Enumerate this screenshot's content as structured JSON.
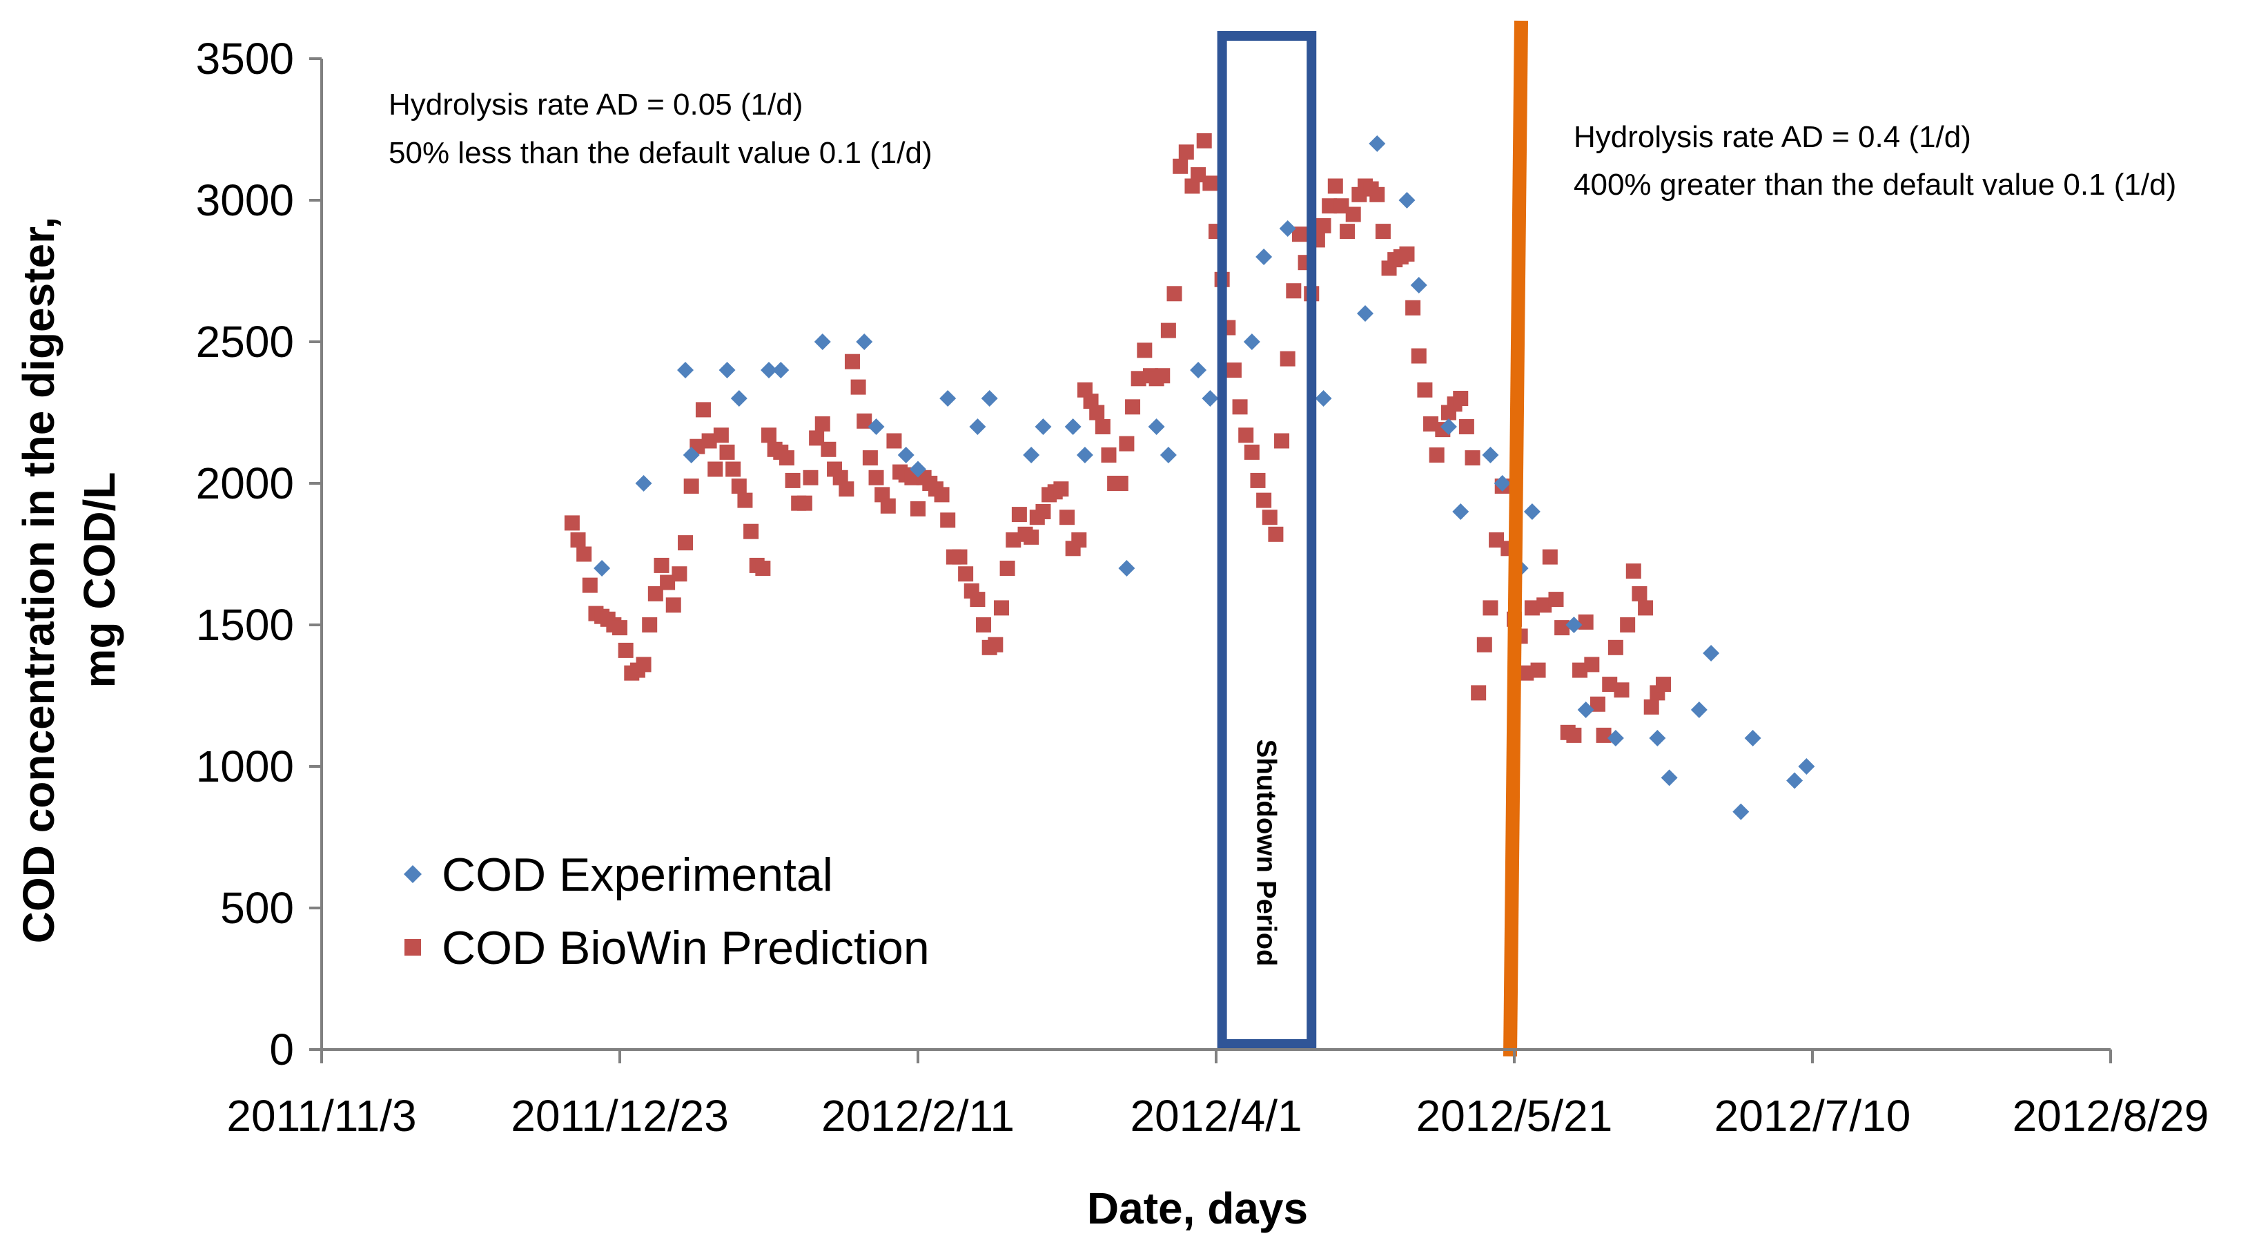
{
  "colors": {
    "experimental": "#4F81BD",
    "prediction": "#C0504D",
    "shutdown_box": "#2F5597",
    "orange_line": "#E46C0A",
    "axis": "#808080"
  },
  "chart_data": {
    "type": "scatter",
    "xlabel": "Date, days",
    "ylabel_line1": "COD concentration in the digester,",
    "ylabel_line2": "mg COD/L",
    "xlim": [
      "2011-11-03",
      "2012-08-29"
    ],
    "ylim": [
      0,
      3500
    ],
    "x_ticks": [
      "2011/11/3",
      "2011/12/23",
      "2012/2/11",
      "2012/4/1",
      "2012/5/21",
      "2012/7/10",
      "2012/8/29"
    ],
    "y_ticks": [
      "0",
      "500",
      "1000",
      "1500",
      "2000",
      "2500",
      "3000",
      "3500"
    ],
    "grid": false,
    "legend_position": "bottom-left",
    "annotations": {
      "left_line1": "Hydrolysis rate AD = 0.05 (1/d)",
      "left_line2": "50% less than the default value  0.1 (1/d)",
      "right_line1": "Hydrolysis rate AD = 0.4 (1/d)",
      "right_line2": "400% greater than the default value 0.1 (1/d)",
      "shutdown": "Shutdown  Period"
    },
    "shutdown_period": [
      "2012-04-02",
      "2012-04-17"
    ],
    "vertical_line_date": "2012-05-21",
    "series": [
      {
        "name": "COD Experimental",
        "marker": "diamond",
        "points": [
          [
            "2011-12-20",
            1700
          ],
          [
            "2011-12-27",
            2000
          ],
          [
            "2012-01-03",
            2400
          ],
          [
            "2012-01-04",
            2100
          ],
          [
            "2012-01-10",
            2400
          ],
          [
            "2012-01-12",
            2300
          ],
          [
            "2012-01-17",
            2400
          ],
          [
            "2012-01-19",
            2400
          ],
          [
            "2012-01-26",
            2500
          ],
          [
            "2012-02-02",
            2500
          ],
          [
            "2012-02-04",
            2200
          ],
          [
            "2012-02-09",
            2100
          ],
          [
            "2012-02-11",
            2050
          ],
          [
            "2012-02-16",
            2300
          ],
          [
            "2012-02-21",
            2200
          ],
          [
            "2012-02-23",
            2300
          ],
          [
            "2012-03-01",
            2100
          ],
          [
            "2012-03-03",
            2200
          ],
          [
            "2012-03-08",
            2200
          ],
          [
            "2012-03-10",
            2100
          ],
          [
            "2012-03-17",
            1700
          ],
          [
            "2012-03-22",
            2200
          ],
          [
            "2012-03-24",
            2100
          ],
          [
            "2012-03-29",
            2400
          ],
          [
            "2012-03-31",
            2300
          ],
          [
            "2012-04-07",
            2500
          ],
          [
            "2012-04-09",
            2800
          ],
          [
            "2012-04-13",
            2900
          ],
          [
            "2012-04-19",
            2300
          ],
          [
            "2012-04-26",
            2600
          ],
          [
            "2012-04-28",
            3200
          ],
          [
            "2012-05-03",
            3000
          ],
          [
            "2012-05-05",
            2700
          ],
          [
            "2012-05-10",
            2200
          ],
          [
            "2012-05-12",
            1900
          ],
          [
            "2012-05-17",
            2100
          ],
          [
            "2012-05-19",
            2000
          ],
          [
            "2012-05-22",
            1700
          ],
          [
            "2012-05-24",
            1900
          ],
          [
            "2012-05-31",
            1500
          ],
          [
            "2012-06-02",
            1200
          ],
          [
            "2012-06-07",
            1100
          ],
          [
            "2012-06-14",
            1100
          ],
          [
            "2012-06-16",
            960
          ],
          [
            "2012-06-21",
            1200
          ],
          [
            "2012-06-23",
            1400
          ],
          [
            "2012-06-28",
            840
          ],
          [
            "2012-06-30",
            1100
          ],
          [
            "2012-07-07",
            950
          ],
          [
            "2012-07-09",
            1000
          ]
        ]
      },
      {
        "name": "COD BioWin Prediction",
        "marker": "square",
        "points": [
          [
            "2011-12-15",
            1860
          ],
          [
            "2011-12-16",
            1800
          ],
          [
            "2011-12-17",
            1750
          ],
          [
            "2011-12-18",
            1640
          ],
          [
            "2011-12-19",
            1540
          ],
          [
            "2011-12-20",
            1530
          ],
          [
            "2011-12-21",
            1520
          ],
          [
            "2011-12-22",
            1500
          ],
          [
            "2011-12-23",
            1490
          ],
          [
            "2011-12-24",
            1410
          ],
          [
            "2011-12-25",
            1330
          ],
          [
            "2011-12-26",
            1340
          ],
          [
            "2011-12-27",
            1360
          ],
          [
            "2011-12-28",
            1500
          ],
          [
            "2011-12-29",
            1610
          ],
          [
            "2011-12-30",
            1710
          ],
          [
            "2011-12-31",
            1650
          ],
          [
            "2012-01-01",
            1570
          ],
          [
            "2012-01-02",
            1680
          ],
          [
            "2012-01-03",
            1790
          ],
          [
            "2012-01-04",
            1990
          ],
          [
            "2012-01-05",
            2130
          ],
          [
            "2012-01-06",
            2260
          ],
          [
            "2012-01-07",
            2150
          ],
          [
            "2012-01-08",
            2050
          ],
          [
            "2012-01-09",
            2170
          ],
          [
            "2012-01-10",
            2110
          ],
          [
            "2012-01-11",
            2050
          ],
          [
            "2012-01-12",
            1990
          ],
          [
            "2012-01-13",
            1940
          ],
          [
            "2012-01-14",
            1830
          ],
          [
            "2012-01-15",
            1710
          ],
          [
            "2012-01-16",
            1700
          ],
          [
            "2012-01-17",
            2170
          ],
          [
            "2012-01-18",
            2120
          ],
          [
            "2012-01-19",
            2110
          ],
          [
            "2012-01-20",
            2090
          ],
          [
            "2012-01-21",
            2010
          ],
          [
            "2012-01-22",
            1930
          ],
          [
            "2012-01-23",
            1930
          ],
          [
            "2012-01-24",
            2020
          ],
          [
            "2012-01-25",
            2160
          ],
          [
            "2012-01-26",
            2210
          ],
          [
            "2012-01-27",
            2120
          ],
          [
            "2012-01-28",
            2050
          ],
          [
            "2012-01-29",
            2020
          ],
          [
            "2012-01-30",
            1980
          ],
          [
            "2012-01-31",
            2430
          ],
          [
            "2012-02-01",
            2340
          ],
          [
            "2012-02-02",
            2220
          ],
          [
            "2012-02-03",
            2090
          ],
          [
            "2012-02-04",
            2020
          ],
          [
            "2012-02-05",
            1960
          ],
          [
            "2012-02-06",
            1920
          ],
          [
            "2012-02-07",
            2150
          ],
          [
            "2012-02-08",
            2040
          ],
          [
            "2012-02-09",
            2030
          ],
          [
            "2012-02-10",
            2020
          ],
          [
            "2012-02-11",
            1910
          ],
          [
            "2012-02-12",
            2020
          ],
          [
            "2012-02-13",
            2000
          ],
          [
            "2012-02-14",
            1980
          ],
          [
            "2012-02-15",
            1960
          ],
          [
            "2012-02-16",
            1870
          ],
          [
            "2012-02-17",
            1740
          ],
          [
            "2012-02-18",
            1740
          ],
          [
            "2012-02-19",
            1680
          ],
          [
            "2012-02-20",
            1620
          ],
          [
            "2012-02-21",
            1590
          ],
          [
            "2012-02-22",
            1500
          ],
          [
            "2012-02-23",
            1420
          ],
          [
            "2012-02-24",
            1430
          ],
          [
            "2012-02-25",
            1560
          ],
          [
            "2012-02-26",
            1700
          ],
          [
            "2012-02-27",
            1800
          ],
          [
            "2012-02-28",
            1890
          ],
          [
            "2012-02-29",
            1820
          ],
          [
            "2012-03-01",
            1810
          ],
          [
            "2012-03-02",
            1880
          ],
          [
            "2012-03-03",
            1900
          ],
          [
            "2012-03-04",
            1960
          ],
          [
            "2012-03-05",
            1970
          ],
          [
            "2012-03-06",
            1980
          ],
          [
            "2012-03-07",
            1880
          ],
          [
            "2012-03-08",
            1770
          ],
          [
            "2012-03-09",
            1800
          ],
          [
            "2012-03-10",
            2330
          ],
          [
            "2012-03-11",
            2290
          ],
          [
            "2012-03-12",
            2250
          ],
          [
            "2012-03-13",
            2200
          ],
          [
            "2012-03-14",
            2100
          ],
          [
            "2012-03-15",
            2000
          ],
          [
            "2012-03-16",
            2000
          ],
          [
            "2012-03-17",
            2140
          ],
          [
            "2012-03-18",
            2270
          ],
          [
            "2012-03-19",
            2370
          ],
          [
            "2012-03-20",
            2470
          ],
          [
            "2012-03-21",
            2380
          ],
          [
            "2012-03-22",
            2370
          ],
          [
            "2012-03-23",
            2380
          ],
          [
            "2012-03-24",
            2540
          ],
          [
            "2012-03-25",
            2670
          ],
          [
            "2012-03-26",
            3120
          ],
          [
            "2012-03-27",
            3170
          ],
          [
            "2012-03-28",
            3050
          ],
          [
            "2012-03-29",
            3090
          ],
          [
            "2012-03-30",
            3210
          ],
          [
            "2012-03-31",
            3060
          ],
          [
            "2012-04-01",
            2890
          ],
          [
            "2012-04-02",
            2720
          ],
          [
            "2012-04-03",
            2550
          ],
          [
            "2012-04-04",
            2400
          ],
          [
            "2012-04-05",
            2270
          ],
          [
            "2012-04-06",
            2170
          ],
          [
            "2012-04-07",
            2110
          ],
          [
            "2012-04-08",
            2010
          ],
          [
            "2012-04-09",
            1940
          ],
          [
            "2012-04-10",
            1880
          ],
          [
            "2012-04-11",
            1820
          ],
          [
            "2012-04-12",
            2150
          ],
          [
            "2012-04-13",
            2440
          ],
          [
            "2012-04-14",
            2680
          ],
          [
            "2012-04-15",
            2880
          ],
          [
            "2012-04-16",
            2780
          ],
          [
            "2012-04-17",
            2670
          ],
          [
            "2012-04-18",
            2860
          ],
          [
            "2012-04-19",
            2910
          ],
          [
            "2012-04-20",
            2980
          ],
          [
            "2012-04-21",
            3050
          ],
          [
            "2012-04-22",
            2980
          ],
          [
            "2012-04-23",
            2890
          ],
          [
            "2012-04-24",
            2950
          ],
          [
            "2012-04-25",
            3020
          ],
          [
            "2012-04-26",
            3050
          ],
          [
            "2012-04-27",
            3040
          ],
          [
            "2012-04-28",
            3020
          ],
          [
            "2012-04-29",
            2890
          ],
          [
            "2012-04-30",
            2760
          ],
          [
            "2012-05-01",
            2790
          ],
          [
            "2012-05-02",
            2800
          ],
          [
            "2012-05-03",
            2810
          ],
          [
            "2012-05-04",
            2620
          ],
          [
            "2012-05-05",
            2450
          ],
          [
            "2012-05-06",
            2330
          ],
          [
            "2012-05-07",
            2210
          ],
          [
            "2012-05-08",
            2100
          ],
          [
            "2012-05-09",
            2190
          ],
          [
            "2012-05-10",
            2250
          ],
          [
            "2012-05-11",
            2280
          ],
          [
            "2012-05-12",
            2300
          ],
          [
            "2012-05-13",
            2200
          ],
          [
            "2012-05-14",
            2090
          ],
          [
            "2012-05-15",
            1260
          ],
          [
            "2012-05-16",
            1430
          ],
          [
            "2012-05-17",
            1560
          ],
          [
            "2012-05-18",
            1800
          ],
          [
            "2012-05-19",
            1990
          ],
          [
            "2012-05-20",
            1770
          ],
          [
            "2012-05-21",
            1520
          ],
          [
            "2012-05-22",
            1460
          ],
          [
            "2012-05-23",
            1330
          ],
          [
            "2012-05-24",
            1560
          ],
          [
            "2012-05-25",
            1340
          ],
          [
            "2012-05-26",
            1570
          ],
          [
            "2012-05-27",
            1740
          ],
          [
            "2012-05-28",
            1590
          ],
          [
            "2012-05-29",
            1490
          ],
          [
            "2012-05-30",
            1120
          ],
          [
            "2012-05-31",
            1110
          ],
          [
            "2012-06-01",
            1340
          ],
          [
            "2012-06-02",
            1510
          ],
          [
            "2012-06-03",
            1360
          ],
          [
            "2012-06-04",
            1220
          ],
          [
            "2012-06-05",
            1110
          ],
          [
            "2012-06-06",
            1290
          ],
          [
            "2012-06-07",
            1420
          ],
          [
            "2012-06-08",
            1270
          ],
          [
            "2012-06-09",
            1500
          ],
          [
            "2012-06-10",
            1690
          ],
          [
            "2012-06-11",
            1610
          ],
          [
            "2012-06-12",
            1560
          ],
          [
            "2012-06-13",
            1210
          ],
          [
            "2012-06-14",
            1260
          ],
          [
            "2012-06-15",
            1290
          ]
        ]
      }
    ]
  }
}
